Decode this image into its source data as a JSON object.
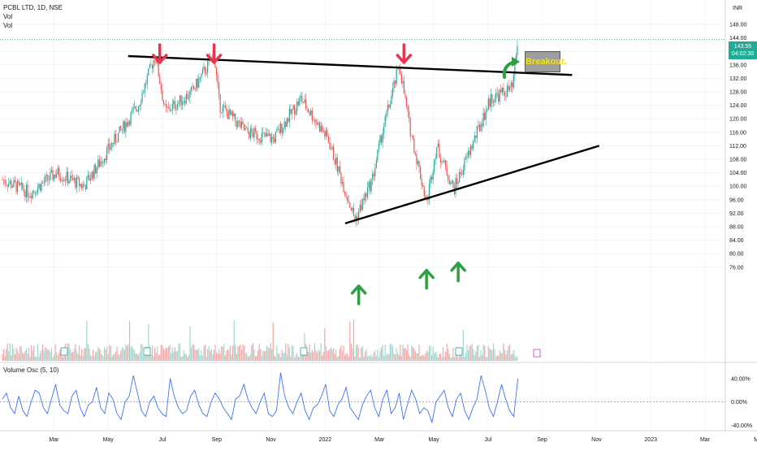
{
  "legend": {
    "title": "PCBL LTD, 1D, NSE",
    "line2": "Vol",
    "line3": "Vol"
  },
  "currency_label": "INR",
  "price_badge": {
    "price": "143.55",
    "countdown": "04:02:30"
  },
  "annotation": {
    "text": "Breakout."
  },
  "oscillator": {
    "label": "Volume Osc (5, 10)"
  },
  "colors": {
    "up": "#26a69a",
    "down": "#ef5350",
    "arrow_down": "#e8344d",
    "arrow_up": "#2ea043",
    "trendline": "#000000",
    "osc_line": "#2962ff",
    "breakout_bg": "#9e9e9e",
    "breakout_text": "#f5e300"
  },
  "chart_data": [
    {
      "type": "candlestick",
      "title": "PCBL LTD, 1D, NSE",
      "price_ticks": [
        "148.00",
        "144.00",
        "140.00",
        "136.00",
        "132.00",
        "128.00",
        "124.00",
        "120.00",
        "116.00",
        "112.00",
        "108.00",
        "104.00",
        "100.00",
        "96.00",
        "92.00",
        "88.00",
        "84.00",
        "80.00",
        "76.00"
      ],
      "ylim": [
        74,
        150
      ],
      "time_ticks": [
        "Mar",
        "May",
        "Jul",
        "Sep",
        "Nov",
        "2022",
        "Mar",
        "May",
        "Jul",
        "Sep",
        "Nov",
        "2023",
        "Mar",
        "May"
      ],
      "price_path": [
        [
          "2021-02",
          102
        ],
        [
          "2021-03",
          98
        ],
        [
          "2021-04",
          104
        ],
        [
          "2021-05",
          100
        ],
        [
          "2021-06",
          112
        ],
        [
          "2021-07",
          124
        ],
        [
          "2021-07-20",
          139
        ],
        [
          "2021-08",
          122
        ],
        [
          "2021-09",
          128
        ],
        [
          "2021-09-25",
          139
        ],
        [
          "2021-10",
          124
        ],
        [
          "2021-11",
          116
        ],
        [
          "2021-12",
          114
        ],
        [
          "2022-01",
          126
        ],
        [
          "2022-02",
          114
        ],
        [
          "2022-03",
          90
        ],
        [
          "2022-03-20",
          102
        ],
        [
          "2022-04",
          116
        ],
        [
          "2022-04-20",
          136
        ],
        [
          "2022-05",
          118
        ],
        [
          "2022-05-20",
          95
        ],
        [
          "2022-06",
          112
        ],
        [
          "2022-06-20",
          99
        ],
        [
          "2022-07",
          106
        ],
        [
          "2022-08",
          126
        ],
        [
          "2022-08-25",
          129
        ],
        [
          "2022-09-01",
          143.55
        ]
      ],
      "last_price": 143.55,
      "annotations": [
        "Breakout."
      ],
      "resistance_line": {
        "start": [
          "2021-06-20",
          138.6
        ],
        "end": [
          "2022-11-01",
          133.0
        ]
      },
      "support_line": {
        "start": [
          "2022-02-20",
          89.0
        ],
        "end": [
          "2022-12-01",
          112.0
        ]
      },
      "resistance_arrows": [
        "2021-07-25",
        "2021-09-25",
        "2022-04-25"
      ],
      "support_arrows": [
        "2022-03-05",
        "2022-05-20",
        "2022-06-25"
      ]
    },
    {
      "type": "line",
      "name": "Volume Osc (5, 10)",
      "y_ticks": [
        "40.00%",
        "0.00%",
        "-40.00%"
      ],
      "ylim": [
        -45,
        55
      ],
      "values": [
        5,
        15,
        -10,
        -20,
        10,
        -15,
        -25,
        0,
        20,
        15,
        -10,
        -20,
        5,
        30,
        -5,
        -15,
        -20,
        10,
        20,
        -10,
        -25,
        -5,
        0,
        25,
        -10,
        -20,
        15,
        5,
        -20,
        -30,
        0,
        10,
        45,
        15,
        -15,
        -25,
        0,
        10,
        -10,
        -20,
        -25,
        40,
        10,
        -10,
        -20,
        -15,
        10,
        20,
        -5,
        -20,
        -25,
        0,
        15,
        5,
        -10,
        -20,
        -30,
        5,
        10,
        30,
        5,
        -10,
        -20,
        0,
        15,
        -20,
        -25,
        -15,
        50,
        10,
        -10,
        -20,
        0,
        15,
        -15,
        -30,
        -10,
        -5,
        10,
        30,
        -15,
        -25,
        -5,
        5,
        25,
        -10,
        -20,
        -30,
        -5,
        10,
        20,
        -10,
        -25,
        5,
        20,
        -20,
        -10,
        15,
        -30,
        -5,
        20,
        5,
        -20,
        -10,
        -15,
        -35,
        0,
        10,
        20,
        -10,
        -25,
        5,
        15,
        -15,
        -30,
        -10,
        5,
        45,
        20,
        -10,
        -25,
        0,
        30,
        5,
        -15,
        -25,
        40
      ]
    }
  ]
}
